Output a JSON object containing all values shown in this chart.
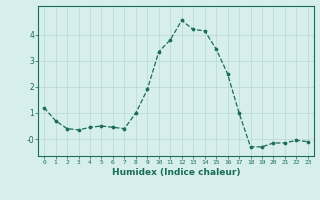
{
  "x": [
    0,
    1,
    2,
    3,
    4,
    5,
    6,
    7,
    8,
    9,
    10,
    11,
    12,
    13,
    14,
    15,
    16,
    17,
    18,
    19,
    20,
    21,
    22,
    23
  ],
  "y": [
    1.2,
    0.7,
    0.4,
    0.35,
    0.45,
    0.5,
    0.45,
    0.4,
    1.0,
    1.9,
    3.35,
    3.8,
    4.55,
    4.2,
    4.15,
    3.45,
    2.5,
    1.0,
    -0.3,
    -0.3,
    -0.15,
    -0.15,
    -0.05,
    -0.1
  ],
  "line_color": "#1a6b5a",
  "marker": "o",
  "markersize": 2.2,
  "linewidth": 0.9,
  "xlabel": "Humidex (Indice chaleur)",
  "xlim": [
    -0.5,
    23.5
  ],
  "ylim": [
    -0.65,
    5.1
  ],
  "yticks": [
    0,
    1,
    2,
    3,
    4
  ],
  "ytick_labels": [
    "-0",
    "1",
    "2",
    "3",
    "4"
  ],
  "xtick_labels": [
    "0",
    "1",
    "2",
    "3",
    "4",
    "5",
    "6",
    "7",
    "8",
    "9",
    "10",
    "11",
    "12",
    "13",
    "14",
    "15",
    "16",
    "17",
    "18",
    "19",
    "20",
    "21",
    "22",
    "23"
  ],
  "bg_color": "#d6efed",
  "grid_color": "#b8d8d4",
  "tick_color": "#1a6b5a",
  "label_color": "#1a6b5a"
}
